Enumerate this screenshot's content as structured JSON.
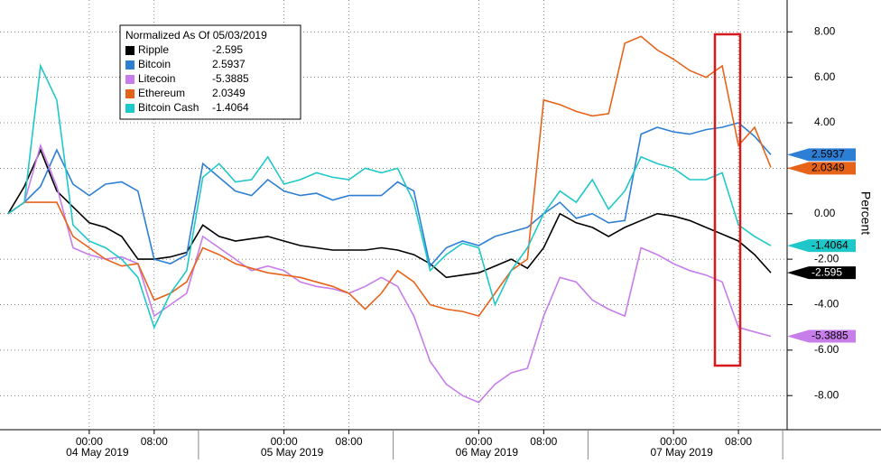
{
  "chart_data": {
    "type": "line",
    "legend_title": "Normalized As Of 05/03/2019",
    "ylabel": "Percent",
    "x": [
      "2019-05-03 14:00",
      "2019-05-03 16:00",
      "2019-05-03 18:00",
      "2019-05-03 20:00",
      "2019-05-03 22:00",
      "2019-05-04 00:00",
      "2019-05-04 02:00",
      "2019-05-04 04:00",
      "2019-05-04 06:00",
      "2019-05-04 08:00",
      "2019-05-04 10:00",
      "2019-05-04 12:00",
      "2019-05-04 14:00",
      "2019-05-04 16:00",
      "2019-05-04 18:00",
      "2019-05-04 20:00",
      "2019-05-04 22:00",
      "2019-05-05 00:00",
      "2019-05-05 02:00",
      "2019-05-05 04:00",
      "2019-05-05 06:00",
      "2019-05-05 08:00",
      "2019-05-05 10:00",
      "2019-05-05 12:00",
      "2019-05-05 14:00",
      "2019-05-05 16:00",
      "2019-05-05 18:00",
      "2019-05-05 20:00",
      "2019-05-05 22:00",
      "2019-05-06 00:00",
      "2019-05-06 02:00",
      "2019-05-06 04:00",
      "2019-05-06 06:00",
      "2019-05-06 08:00",
      "2019-05-06 10:00",
      "2019-05-06 12:00",
      "2019-05-06 14:00",
      "2019-05-06 16:00",
      "2019-05-06 18:00",
      "2019-05-06 20:00",
      "2019-05-06 22:00",
      "2019-05-07 00:00",
      "2019-05-07 02:00",
      "2019-05-07 04:00",
      "2019-05-07 06:00",
      "2019-05-07 08:00",
      "2019-05-07 10:00",
      "2019-05-07 12:00"
    ],
    "xlim": [
      "2019-05-03 13:00",
      "2019-05-07 14:00"
    ],
    "xticks": [
      {
        "value": "2019-05-04 00:00",
        "label": "00:00"
      },
      {
        "value": "2019-05-04 08:00",
        "label": "08:00"
      },
      {
        "value": "2019-05-05 00:00",
        "label": "00:00"
      },
      {
        "value": "2019-05-05 08:00",
        "label": "08:00"
      },
      {
        "value": "2019-05-06 00:00",
        "label": "00:00"
      },
      {
        "value": "2019-05-06 08:00",
        "label": "08:00"
      },
      {
        "value": "2019-05-07 00:00",
        "label": "00:00"
      },
      {
        "value": "2019-05-07 08:00",
        "label": "08:00"
      }
    ],
    "date_labels": [
      {
        "value": "2019-05-04 01:00",
        "label": "04 May 2019"
      },
      {
        "value": "2019-05-05 01:00",
        "label": "05 May 2019"
      },
      {
        "value": "2019-05-06 01:00",
        "label": "06 May 2019"
      },
      {
        "value": "2019-05-07 01:00",
        "label": "07 May 2019"
      }
    ],
    "ylim": [
      -9.5,
      9.4
    ],
    "yticks": [
      {
        "value": -8,
        "label": "-8.00"
      },
      {
        "value": -6,
        "label": "-6.00"
      },
      {
        "value": -4,
        "label": "-4.00"
      },
      {
        "value": -2,
        "label": "-2.00"
      },
      {
        "value": 0,
        "label": "0.00"
      },
      {
        "value": 2,
        "label": "2.00"
      },
      {
        "value": 4,
        "label": "4.00"
      },
      {
        "value": 6,
        "label": "6.00"
      },
      {
        "value": 8,
        "label": "8.00"
      }
    ],
    "grid": true,
    "legend": "upper left",
    "series": [
      {
        "name": "Ripple",
        "color": "#000000",
        "legend_value": "-2.595",
        "tag_text_color": "#ffffff",
        "values": [
          0,
          1.2,
          2.8,
          1.0,
          0.3,
          -0.4,
          -0.6,
          -1.0,
          -2.0,
          -2.0,
          -1.9,
          -1.7,
          -0.5,
          -1.0,
          -1.2,
          -1.1,
          -1.0,
          -1.2,
          -1.4,
          -1.5,
          -1.6,
          -1.6,
          -1.6,
          -1.5,
          -1.6,
          -1.8,
          -2.2,
          -2.8,
          -2.7,
          -2.6,
          -2.3,
          -2.0,
          -2.4,
          -1.5,
          0.0,
          -0.4,
          -0.6,
          -1.0,
          -0.6,
          -0.3,
          0.0,
          -0.1,
          -0.3,
          -0.6,
          -0.9,
          -1.2,
          -1.8,
          -2.595
        ]
      },
      {
        "name": "Bitcoin",
        "color": "#2d7fd6",
        "legend_value": "2.5937",
        "tag_text_color": "#000000",
        "values": [
          0,
          0.5,
          1.2,
          2.8,
          1.3,
          0.8,
          1.3,
          1.4,
          1.0,
          -2.0,
          -2.2,
          -1.8,
          2.2,
          1.6,
          1.0,
          0.8,
          1.5,
          1.0,
          0.8,
          0.9,
          0.6,
          0.8,
          0.8,
          0.8,
          1.4,
          1.0,
          -2.3,
          -1.5,
          -1.2,
          -1.4,
          -1.0,
          -0.8,
          -0.6,
          0.0,
          0.5,
          -0.2,
          0.0,
          -0.4,
          -0.3,
          3.5,
          3.8,
          3.6,
          3.5,
          3.7,
          3.8,
          4.0,
          3.4,
          2.5937
        ]
      },
      {
        "name": "Litecoin",
        "color": "#c77dea",
        "legend_value": "-5.3885",
        "tag_text_color": "#000000",
        "values": [
          0,
          0.5,
          3.0,
          1.2,
          -1.5,
          -1.8,
          -2.0,
          -1.9,
          -2.2,
          -4.5,
          -4.0,
          -3.5,
          -1.0,
          -1.5,
          -2.0,
          -2.5,
          -2.3,
          -2.5,
          -3.0,
          -3.2,
          -3.3,
          -3.5,
          -3.2,
          -2.8,
          -3.2,
          -4.5,
          -6.5,
          -7.5,
          -8.0,
          -8.3,
          -7.5,
          -7.0,
          -6.8,
          -4.5,
          -2.8,
          -3.0,
          -3.8,
          -4.2,
          -4.5,
          -1.5,
          -1.8,
          -2.2,
          -2.5,
          -2.7,
          -3.0,
          -5.0,
          -5.2,
          -5.3885
        ]
      },
      {
        "name": "Ethereum",
        "color": "#e8631a",
        "legend_value": "2.0349",
        "tag_text_color": "#000000",
        "values": [
          0,
          0.5,
          0.5,
          0.5,
          -1.0,
          -1.5,
          -2.0,
          -2.3,
          -2.2,
          -3.8,
          -3.5,
          -3.0,
          -1.5,
          -1.8,
          -2.2,
          -2.4,
          -2.6,
          -2.7,
          -2.8,
          -3.0,
          -3.2,
          -3.5,
          -4.2,
          -3.5,
          -2.5,
          -3.0,
          -4.0,
          -4.2,
          -4.3,
          -4.5,
          -3.5,
          -2.5,
          -2.0,
          5.0,
          4.8,
          4.5,
          4.3,
          4.4,
          7.5,
          7.8,
          7.2,
          6.8,
          6.3,
          6.0,
          6.5,
          3.0,
          3.8,
          2.0349
        ]
      },
      {
        "name": "Bitcoin Cash",
        "color": "#1fc8c8",
        "legend_value": "-1.4064",
        "tag_text_color": "#000000",
        "values": [
          0,
          0.5,
          6.5,
          5.0,
          -0.5,
          -1.2,
          -1.5,
          -2.0,
          -2.8,
          -5.0,
          -3.5,
          -2.5,
          1.6,
          2.2,
          1.4,
          1.5,
          2.5,
          1.3,
          1.5,
          1.8,
          1.6,
          1.5,
          2.0,
          1.8,
          2.0,
          0.5,
          -2.5,
          -1.8,
          -1.3,
          -1.5,
          -4.0,
          -2.5,
          -1.5,
          0.0,
          1.0,
          0.5,
          1.5,
          0.2,
          1.0,
          2.5,
          2.2,
          2.0,
          1.5,
          1.5,
          1.8,
          -0.5,
          -1.0,
          -1.4064
        ]
      }
    ]
  }
}
